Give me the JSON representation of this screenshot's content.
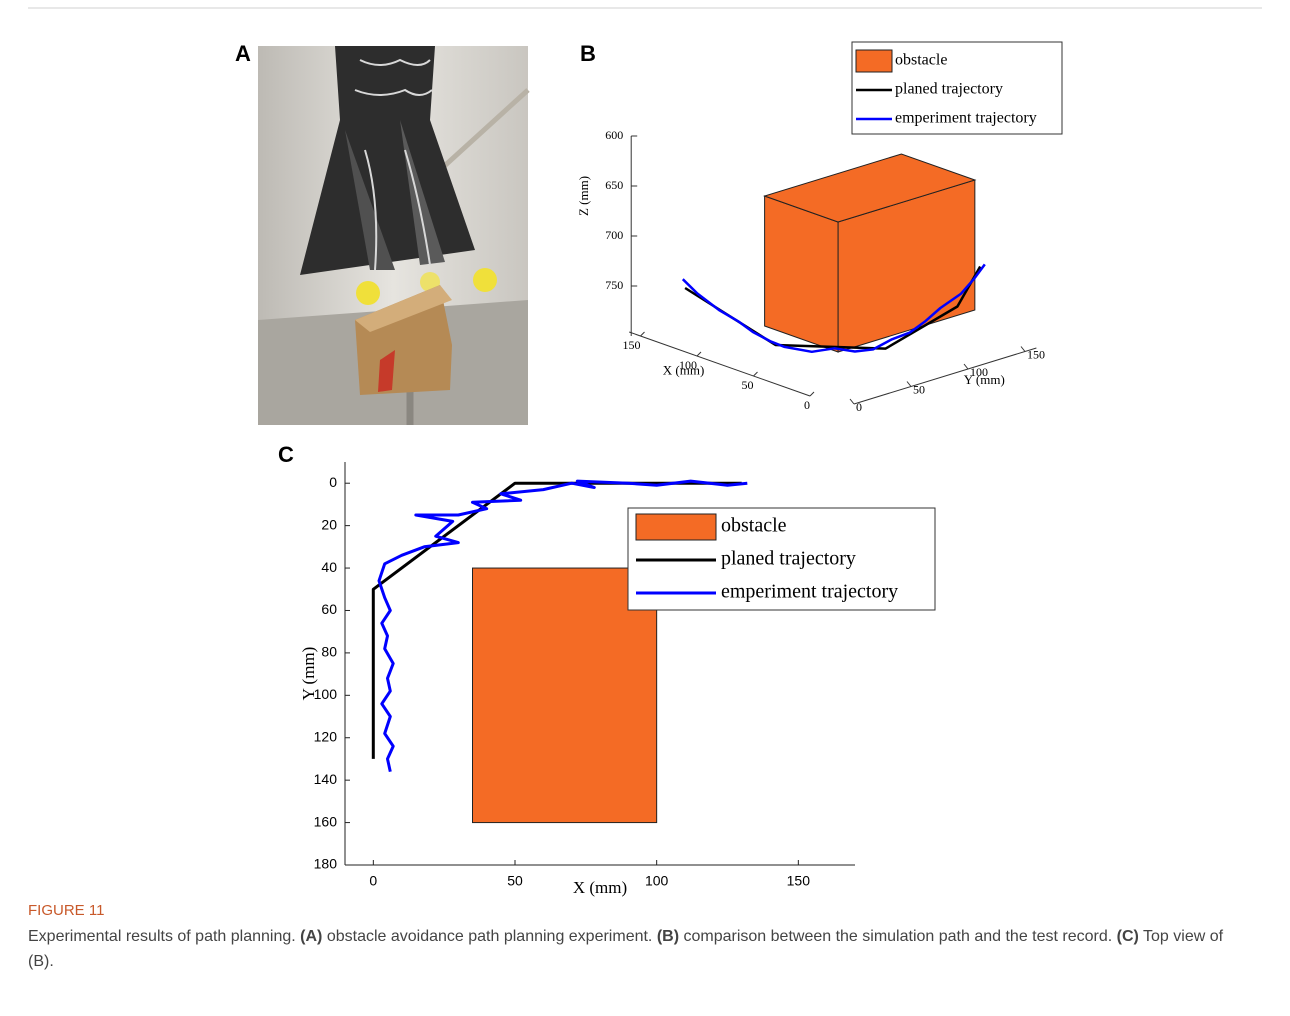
{
  "figure": {
    "panel_labels": [
      "A",
      "B",
      "C"
    ],
    "label": "FIGURE 11",
    "caption": [
      {
        "text": "Experimental results of path planning. ",
        "bold": false
      },
      {
        "text": "(A)",
        "bold": true
      },
      {
        "text": " obstacle avoidance path planning experiment. ",
        "bold": false
      },
      {
        "text": "(B)",
        "bold": true
      },
      {
        "text": " comparison between the simulation path and the test record. ",
        "bold": false
      },
      {
        "text": "(C)",
        "bold": true
      },
      {
        "text": " Top view of (B).",
        "bold": false
      }
    ]
  },
  "chart_data": [
    {
      "type": "line3d",
      "xlabel": "X (mm)",
      "ylabel": "Y (mm)",
      "zlabel": "Z (mm)",
      "xlim": [
        0,
        160
      ],
      "ylim": [
        0,
        160
      ],
      "zlim": [
        600,
        800
      ],
      "zreverse": true,
      "xticks": [
        0,
        50,
        100,
        150
      ],
      "yticks": [
        0,
        50,
        100,
        150
      ],
      "zticks": [
        600,
        650,
        700,
        750
      ],
      "series": [
        {
          "name": "obstacle",
          "color": "#f46b25",
          "box": {
            "x": [
              35,
              100
            ],
            "y": [
              40,
              160
            ],
            "z": [
              650,
              780
            ]
          }
        },
        {
          "name": "planed trajectory",
          "color": "#000000",
          "x": [
            130,
            50,
            0,
            0,
            0
          ],
          "y": [
            0,
            0,
            47,
            110,
            130
          ],
          "z": [
            740,
            765,
            765,
            745,
            712
          ]
        },
        {
          "name": "emperiment trajectory",
          "color": "#0000ff",
          "x": [
            132,
            120,
            100,
            85,
            70,
            55,
            45,
            30,
            20,
            10,
            4,
            3,
            2,
            3,
            5,
            2,
            0,
            1
          ],
          "y": [
            0,
            1,
            0,
            2,
            0,
            1,
            3,
            12,
            22,
            30,
            40,
            55,
            70,
            85,
            100,
            115,
            125,
            135
          ],
          "z": [
            732,
            742,
            750,
            756,
            760,
            764,
            766,
            768,
            764,
            766,
            765,
            760,
            758,
            752,
            745,
            735,
            722,
            712
          ]
        }
      ]
    },
    {
      "type": "line",
      "xlabel": "X (mm)",
      "ylabel": "Y (mm)",
      "xlim": [
        -10,
        170
      ],
      "ylim": [
        -10,
        180
      ],
      "yreverse": true,
      "xticks": [
        0,
        50,
        100,
        150
      ],
      "yticks": [
        0,
        20,
        40,
        60,
        80,
        100,
        120,
        140,
        160,
        180
      ],
      "series": [
        {
          "name": "obstacle",
          "color": "#f46b25",
          "box": {
            "x": [
              35,
              100
            ],
            "y": [
              40,
              160
            ]
          }
        },
        {
          "name": "planed trajectory",
          "color": "#000000",
          "x": [
            0,
            0,
            50,
            130
          ],
          "y": [
            130,
            50,
            0,
            0
          ]
        },
        {
          "name": "emperiment trajectory",
          "color": "#0000ff",
          "x": [
            6,
            5,
            7,
            4,
            6,
            3,
            6,
            5,
            7,
            4,
            5,
            3,
            6,
            4,
            2,
            4,
            10,
            18,
            30,
            22,
            28,
            15,
            30,
            40,
            35,
            52,
            45,
            60,
            70,
            78,
            72,
            90,
            100,
            112,
            125,
            132
          ],
          "y": [
            136,
            130,
            124,
            118,
            110,
            104,
            98,
            92,
            85,
            78,
            72,
            66,
            60,
            54,
            46,
            38,
            34,
            30,
            28,
            25,
            18,
            15,
            15,
            12,
            9,
            8,
            5,
            3,
            0,
            2,
            -1,
            0,
            1,
            -1,
            1,
            0
          ]
        }
      ]
    }
  ]
}
